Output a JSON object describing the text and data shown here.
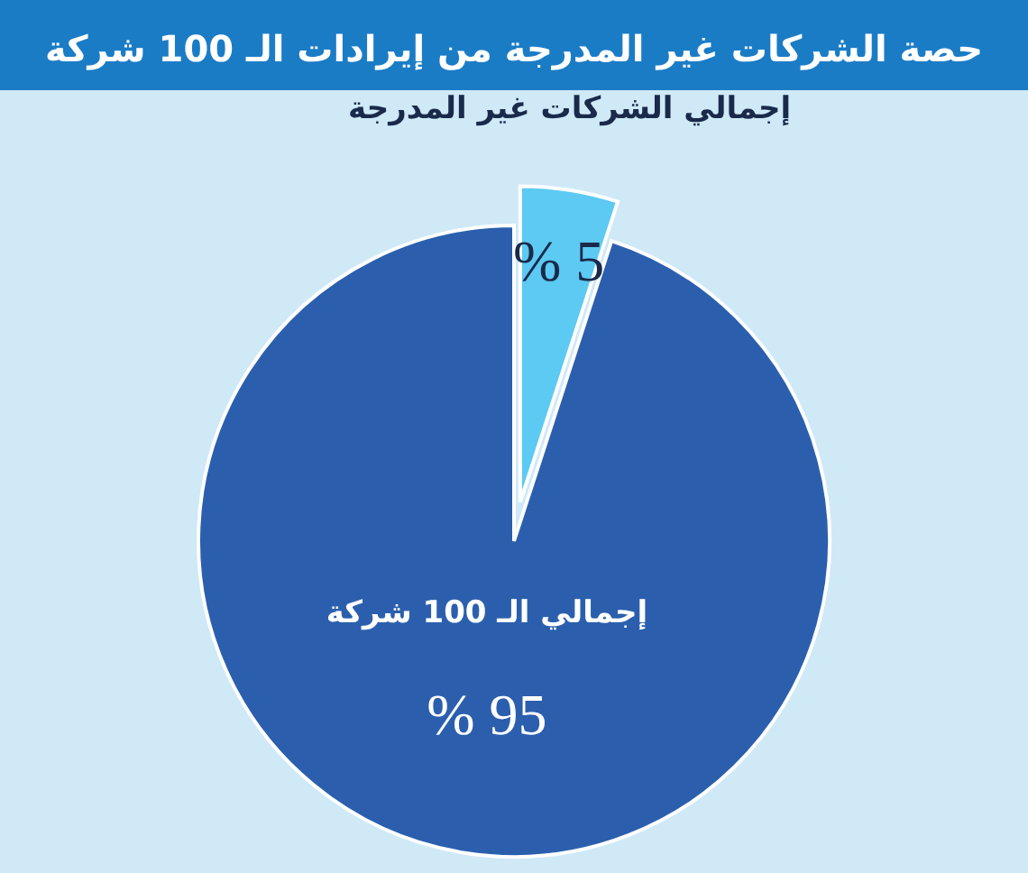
{
  "chart_data": {
    "type": "pie",
    "title": "حصة الشركات غير المدرجة من إيرادات الـ 100 شركة",
    "categories": [
      "إجمالي الـ 100 شركة",
      "إجمالي الشركات غير المدرجة"
    ],
    "values": [
      95,
      5
    ],
    "colors": [
      "#2b5fae",
      "#5ccaf2"
    ],
    "value_labels": [
      "95 %",
      "5 %"
    ]
  }
}
